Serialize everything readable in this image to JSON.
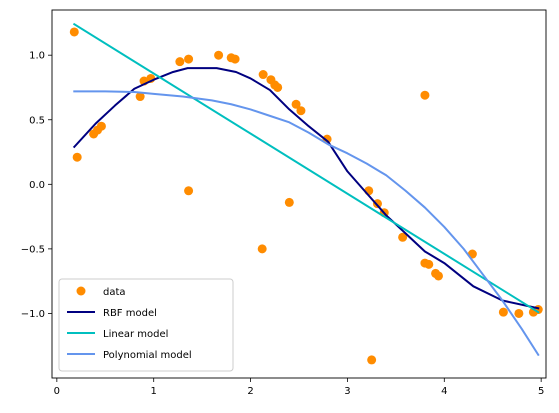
{
  "chart_data": {
    "type": "scatter",
    "xlim": [
      -0.05,
      5.05
    ],
    "ylim": [
      -1.5,
      1.35
    ],
    "x_ticks": [
      0,
      1,
      2,
      3,
      4,
      5
    ],
    "y_ticks": [
      -1.0,
      -0.5,
      0.0,
      0.5,
      1.0
    ],
    "x_tick_labels": [
      "0",
      "1",
      "2",
      "3",
      "4",
      "5"
    ],
    "y_tick_labels": [
      "−1.0",
      "−0.5",
      "0.0",
      "0.5",
      "1.0"
    ],
    "grid": false,
    "legend_position": "lower-left",
    "series": [
      {
        "name": "data",
        "kind": "scatter",
        "color": "#ff8c00",
        "points": [
          [
            0.18,
            1.18
          ],
          [
            0.21,
            0.21
          ],
          [
            0.38,
            0.39
          ],
          [
            0.42,
            0.42
          ],
          [
            0.46,
            0.45
          ],
          [
            0.86,
            0.68
          ],
          [
            0.9,
            0.8
          ],
          [
            0.97,
            0.82
          ],
          [
            1.27,
            0.95
          ],
          [
            1.36,
            0.97
          ],
          [
            1.36,
            -0.05
          ],
          [
            1.67,
            1.0
          ],
          [
            1.8,
            0.98
          ],
          [
            1.84,
            0.97
          ],
          [
            2.12,
            -0.5
          ],
          [
            2.13,
            0.85
          ],
          [
            2.21,
            0.81
          ],
          [
            2.25,
            0.77
          ],
          [
            2.28,
            0.75
          ],
          [
            2.4,
            -0.14
          ],
          [
            2.47,
            0.62
          ],
          [
            2.52,
            0.57
          ],
          [
            2.79,
            0.35
          ],
          [
            3.22,
            -0.05
          ],
          [
            3.25,
            -1.36
          ],
          [
            3.31,
            -0.15
          ],
          [
            3.38,
            -0.22
          ],
          [
            3.57,
            -0.41
          ],
          [
            3.8,
            0.69
          ],
          [
            3.8,
            -0.61
          ],
          [
            3.84,
            -0.62
          ],
          [
            3.91,
            -0.69
          ],
          [
            3.94,
            -0.71
          ],
          [
            4.29,
            -0.54
          ],
          [
            4.61,
            -0.99
          ],
          [
            4.77,
            -1.0
          ],
          [
            4.92,
            -0.99
          ],
          [
            4.97,
            -0.97
          ]
        ]
      },
      {
        "name": "RBF model",
        "kind": "line",
        "color": "#000080",
        "points": [
          [
            0.18,
            0.29
          ],
          [
            0.4,
            0.47
          ],
          [
            0.6,
            0.61
          ],
          [
            0.8,
            0.74
          ],
          [
            1.0,
            0.81
          ],
          [
            1.2,
            0.87
          ],
          [
            1.35,
            0.9
          ],
          [
            1.65,
            0.9
          ],
          [
            1.85,
            0.87
          ],
          [
            2.0,
            0.82
          ],
          [
            2.2,
            0.73
          ],
          [
            2.4,
            0.58
          ],
          [
            2.6,
            0.45
          ],
          [
            2.8,
            0.33
          ],
          [
            3.0,
            0.1
          ],
          [
            3.2,
            -0.07
          ],
          [
            3.4,
            -0.24
          ],
          [
            3.6,
            -0.38
          ],
          [
            3.8,
            -0.52
          ],
          [
            4.0,
            -0.61
          ],
          [
            4.3,
            -0.79
          ],
          [
            4.6,
            -0.9
          ],
          [
            4.97,
            -0.96
          ]
        ]
      },
      {
        "name": "Linear model",
        "kind": "line",
        "color": "#00bfbf",
        "points": [
          [
            0.18,
            1.24
          ],
          [
            4.97,
            -0.99
          ]
        ]
      },
      {
        "name": "Polynomial model",
        "kind": "line",
        "color": "#6495ed",
        "points": [
          [
            0.18,
            0.72
          ],
          [
            0.5,
            0.72
          ],
          [
            0.8,
            0.715
          ],
          [
            1.0,
            0.7
          ],
          [
            1.3,
            0.68
          ],
          [
            1.6,
            0.65
          ],
          [
            1.8,
            0.62
          ],
          [
            2.0,
            0.58
          ],
          [
            2.2,
            0.53
          ],
          [
            2.4,
            0.48
          ],
          [
            2.6,
            0.4
          ],
          [
            2.8,
            0.31
          ],
          [
            3.0,
            0.24
          ],
          [
            3.2,
            0.16
          ],
          [
            3.4,
            0.07
          ],
          [
            3.6,
            -0.05
          ],
          [
            3.8,
            -0.18
          ],
          [
            4.0,
            -0.33
          ],
          [
            4.2,
            -0.5
          ],
          [
            4.4,
            -0.7
          ],
          [
            4.6,
            -0.9
          ],
          [
            4.8,
            -1.12
          ],
          [
            4.97,
            -1.32
          ]
        ]
      }
    ]
  }
}
